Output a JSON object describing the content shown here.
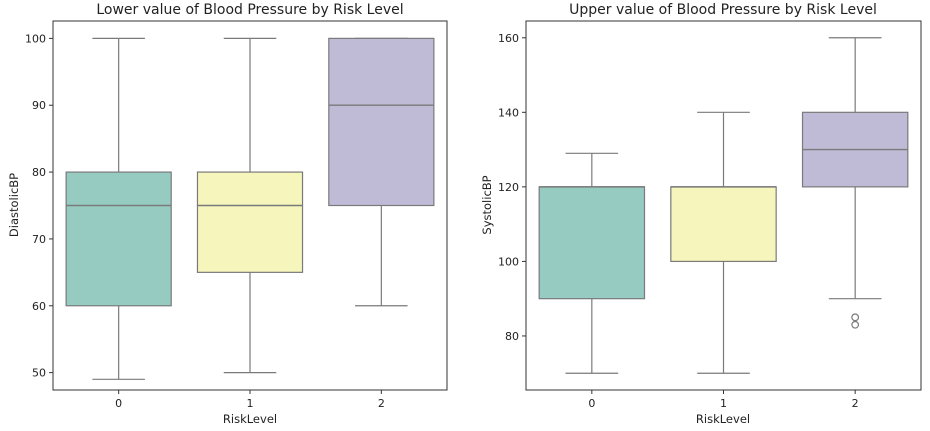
{
  "chart_data": [
    {
      "type": "box",
      "title": "Lower value of Blood Pressure by Risk Level",
      "xlabel": "RiskLevel",
      "ylabel": "DiastolicBP",
      "categories": [
        "0",
        "1",
        "2"
      ],
      "ylim": [
        47.4,
        102.6
      ],
      "yticks": [
        50,
        60,
        70,
        80,
        90,
        100
      ],
      "boxes": [
        {
          "category": "0",
          "whisker_low": 49,
          "q1": 60,
          "median": 75,
          "q3": 80,
          "whisker_high": 100,
          "outliers": [],
          "color": "#96cbc1"
        },
        {
          "category": "1",
          "whisker_low": 50,
          "q1": 65,
          "median": 75,
          "q3": 80,
          "whisker_high": 100,
          "outliers": [],
          "color": "#f5f5bc"
        },
        {
          "category": "2",
          "whisker_low": 60,
          "q1": 75,
          "median": 90,
          "q3": 100,
          "whisker_high": 100,
          "outliers": [],
          "color": "#bfbbd6"
        }
      ]
    },
    {
      "type": "box",
      "title": "Upper value of Blood Pressure by Risk Level",
      "xlabel": "RiskLevel",
      "ylabel": "SystolicBP",
      "categories": [
        "0",
        "1",
        "2"
      ],
      "ylim": [
        65.5,
        164.5
      ],
      "yticks": [
        80,
        100,
        120,
        140,
        160
      ],
      "boxes": [
        {
          "category": "0",
          "whisker_low": 70,
          "q1": 90,
          "median": 120,
          "q3": 120,
          "whisker_high": 129,
          "outliers": [],
          "color": "#96cbc1"
        },
        {
          "category": "1",
          "whisker_low": 70,
          "q1": 100,
          "median": 120,
          "q3": 120,
          "whisker_high": 140,
          "outliers": [],
          "color": "#f5f5bc"
        },
        {
          "category": "2",
          "whisker_low": 90,
          "q1": 120,
          "median": 130,
          "q3": 140,
          "whisker_high": 160,
          "outliers": [
            83,
            85
          ],
          "color": "#bfbbd6"
        }
      ]
    }
  ]
}
